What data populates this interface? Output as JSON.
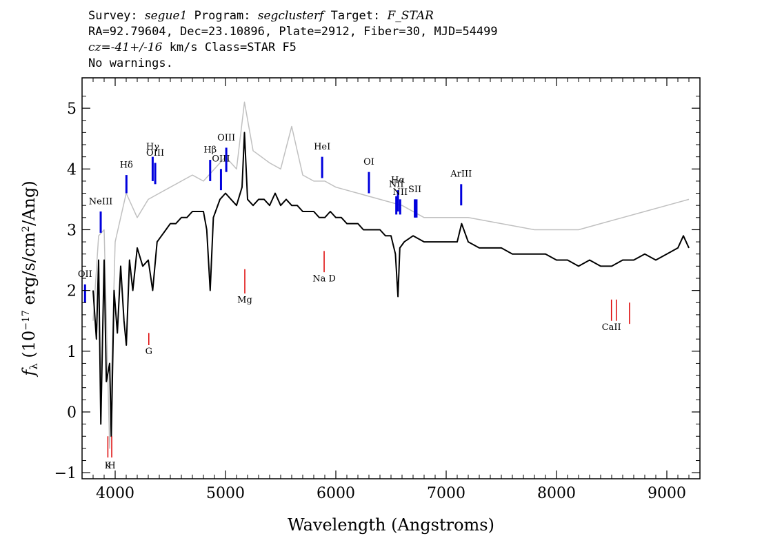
{
  "header": {
    "survey_label": "Survey: ",
    "survey": "segue1",
    "program_label": " Program: ",
    "program": "segclusterf",
    "target_label": " Target: ",
    "target": "F_STAR",
    "line2": "RA=92.79604, Dec=23.10896, Plate=2912, Fiber=30, MJD=54499",
    "cz": "cz=-41+/-16",
    "cz_rest": " km/s Class=STAR F5",
    "line4": "No warnings."
  },
  "chart_data": {
    "type": "line",
    "title": "",
    "xlabel": "Wavelength (Angstroms)",
    "ylabel_parts": [
      "f",
      "λ",
      " (10",
      "−17",
      " erg/s/cm",
      "2",
      "/Ang)"
    ],
    "xlim": [
      3700,
      9300
    ],
    "ylim": [
      -1.1,
      5.5
    ],
    "x_ticks": [
      4000,
      5000,
      6000,
      7000,
      8000,
      9000
    ],
    "x_tick_labels": [
      "4000",
      "5000",
      "6000",
      "7000",
      "8000",
      "9000"
    ],
    "y_ticks": [
      -1,
      0,
      1,
      2,
      3,
      4,
      5
    ],
    "y_tick_labels": [
      "−1",
      "0",
      "1",
      "2",
      "3",
      "4",
      "5"
    ],
    "series": [
      {
        "role": "flux",
        "color": "#000000",
        "points": [
          [
            3800,
            2.0
          ],
          [
            3830,
            1.2
          ],
          [
            3850,
            2.5
          ],
          [
            3870,
            -0.2
          ],
          [
            3900,
            2.5
          ],
          [
            3920,
            0.5
          ],
          [
            3950,
            0.8
          ],
          [
            3965,
            -0.4
          ],
          [
            3990,
            2.0
          ],
          [
            4020,
            1.3
          ],
          [
            4050,
            2.4
          ],
          [
            4080,
            1.5
          ],
          [
            4101,
            1.1
          ],
          [
            4130,
            2.5
          ],
          [
            4160,
            2.0
          ],
          [
            4200,
            2.7
          ],
          [
            4250,
            2.4
          ],
          [
            4300,
            2.5
          ],
          [
            4340,
            2.0
          ],
          [
            4380,
            2.8
          ],
          [
            4420,
            2.9
          ],
          [
            4460,
            3.0
          ],
          [
            4500,
            3.1
          ],
          [
            4550,
            3.1
          ],
          [
            4600,
            3.2
          ],
          [
            4650,
            3.2
          ],
          [
            4700,
            3.3
          ],
          [
            4750,
            3.3
          ],
          [
            4800,
            3.3
          ],
          [
            4830,
            3.0
          ],
          [
            4861,
            2.0
          ],
          [
            4890,
            3.2
          ],
          [
            4950,
            3.5
          ],
          [
            5000,
            3.6
          ],
          [
            5050,
            3.5
          ],
          [
            5100,
            3.4
          ],
          [
            5150,
            3.7
          ],
          [
            5172,
            4.6
          ],
          [
            5200,
            3.5
          ],
          [
            5250,
            3.4
          ],
          [
            5300,
            3.5
          ],
          [
            5350,
            3.5
          ],
          [
            5400,
            3.4
          ],
          [
            5450,
            3.6
          ],
          [
            5500,
            3.4
          ],
          [
            5550,
            3.5
          ],
          [
            5600,
            3.4
          ],
          [
            5650,
            3.4
          ],
          [
            5700,
            3.3
          ],
          [
            5750,
            3.3
          ],
          [
            5800,
            3.3
          ],
          [
            5850,
            3.2
          ],
          [
            5900,
            3.2
          ],
          [
            5950,
            3.3
          ],
          [
            6000,
            3.2
          ],
          [
            6050,
            3.2
          ],
          [
            6100,
            3.1
          ],
          [
            6150,
            3.1
          ],
          [
            6200,
            3.1
          ],
          [
            6250,
            3.0
          ],
          [
            6300,
            3.0
          ],
          [
            6350,
            3.0
          ],
          [
            6400,
            3.0
          ],
          [
            6450,
            2.9
          ],
          [
            6500,
            2.9
          ],
          [
            6540,
            2.6
          ],
          [
            6563,
            1.9
          ],
          [
            6580,
            2.7
          ],
          [
            6620,
            2.8
          ],
          [
            6700,
            2.9
          ],
          [
            6800,
            2.8
          ],
          [
            6900,
            2.8
          ],
          [
            7000,
            2.8
          ],
          [
            7100,
            2.8
          ],
          [
            7140,
            3.1
          ],
          [
            7200,
            2.8
          ],
          [
            7300,
            2.7
          ],
          [
            7400,
            2.7
          ],
          [
            7500,
            2.7
          ],
          [
            7600,
            2.6
          ],
          [
            7700,
            2.6
          ],
          [
            7800,
            2.6
          ],
          [
            7900,
            2.6
          ],
          [
            8000,
            2.5
          ],
          [
            8100,
            2.5
          ],
          [
            8200,
            2.4
          ],
          [
            8300,
            2.5
          ],
          [
            8400,
            2.4
          ],
          [
            8500,
            2.4
          ],
          [
            8600,
            2.5
          ],
          [
            8700,
            2.5
          ],
          [
            8800,
            2.6
          ],
          [
            8900,
            2.5
          ],
          [
            9000,
            2.6
          ],
          [
            9100,
            2.7
          ],
          [
            9150,
            2.9
          ],
          [
            9200,
            2.7
          ]
        ]
      },
      {
        "role": "error",
        "color": "#c0c0c0",
        "points": [
          [
            3800,
            1.5
          ],
          [
            3850,
            2.9
          ],
          [
            3900,
            3.0
          ],
          [
            3950,
            -0.6
          ],
          [
            4000,
            2.8
          ],
          [
            4100,
            3.6
          ],
          [
            4200,
            3.2
          ],
          [
            4300,
            3.5
          ],
          [
            4400,
            3.6
          ],
          [
            4500,
            3.7
          ],
          [
            4600,
            3.8
          ],
          [
            4700,
            3.9
          ],
          [
            4800,
            3.8
          ],
          [
            4900,
            4.0
          ],
          [
            5000,
            4.2
          ],
          [
            5100,
            4.0
          ],
          [
            5172,
            5.1
          ],
          [
            5250,
            4.3
          ],
          [
            5400,
            4.1
          ],
          [
            5500,
            4.0
          ],
          [
            5600,
            4.7
          ],
          [
            5700,
            3.9
          ],
          [
            5800,
            3.8
          ],
          [
            5900,
            3.8
          ],
          [
            6000,
            3.7
          ],
          [
            6200,
            3.6
          ],
          [
            6400,
            3.5
          ],
          [
            6600,
            3.4
          ],
          [
            6800,
            3.2
          ],
          [
            7000,
            3.2
          ],
          [
            7200,
            3.2
          ],
          [
            7500,
            3.1
          ],
          [
            7800,
            3.0
          ],
          [
            8000,
            3.0
          ],
          [
            8200,
            3.0
          ],
          [
            8400,
            3.1
          ],
          [
            8600,
            3.2
          ],
          [
            8800,
            3.3
          ],
          [
            9000,
            3.4
          ],
          [
            9200,
            3.5
          ]
        ]
      }
    ],
    "emission_lines": [
      {
        "label": "NeIII",
        "x": 3869,
        "y0": 2.95,
        "y1": 3.3,
        "color": "#0000dd",
        "label_y": 3.42
      },
      {
        "label": "OII",
        "x": 3727,
        "y0": 1.8,
        "y1": 2.1,
        "color": "#0000dd",
        "label_y": 2.22
      },
      {
        "label": "Hδ",
        "x": 4102,
        "y0": 3.6,
        "y1": 3.9,
        "color": "#0000dd",
        "label_y": 4.02
      },
      {
        "label": "Hγ",
        "x": 4340,
        "y0": 3.8,
        "y1": 4.2,
        "color": "#0000dd",
        "label_y": 4.32
      },
      {
        "label": "OIII",
        "x": 4363,
        "y0": 3.75,
        "y1": 4.1,
        "color": "#0000dd",
        "label_y": 4.22
      },
      {
        "label": "Hβ",
        "x": 4861,
        "y0": 3.8,
        "y1": 4.15,
        "color": "#0000dd",
        "label_y": 4.27
      },
      {
        "label": "OIII",
        "x": 4959,
        "y0": 3.65,
        "y1": 4.0,
        "color": "#0000dd",
        "label_y": 4.12
      },
      {
        "label": "OIII",
        "x": 5007,
        "y0": 3.95,
        "y1": 4.35,
        "color": "#0000dd",
        "label_y": 4.47
      },
      {
        "label": "HeI",
        "x": 5876,
        "y0": 3.85,
        "y1": 4.2,
        "color": "#0000dd",
        "label_y": 4.32
      },
      {
        "label": "OI",
        "x": 6300,
        "y0": 3.6,
        "y1": 3.95,
        "color": "#0000dd",
        "label_y": 4.07
      },
      {
        "label": "NII",
        "x": 6548,
        "y0": 3.25,
        "y1": 3.55,
        "color": "#0000dd",
        "label_y": 3.7
      },
      {
        "label": "Hα",
        "x": 6563,
        "y0": 3.3,
        "y1": 3.65,
        "color": "#0000dd",
        "label_y": 3.77
      },
      {
        "label": "NII",
        "x": 6583,
        "y0": 3.25,
        "y1": 3.5,
        "color": "#0000dd",
        "label_y": 3.57
      },
      {
        "label": "SII",
        "x": 6716,
        "y0": 3.2,
        "y1": 3.5,
        "color": "#0000dd",
        "label_y": 3.62
      },
      {
        "label": "",
        "x": 6731,
        "y0": 3.2,
        "y1": 3.5,
        "color": "#0000dd",
        "label_y": 3.62
      },
      {
        "label": "ArIII",
        "x": 7136,
        "y0": 3.4,
        "y1": 3.75,
        "color": "#0000dd",
        "label_y": 3.87
      }
    ],
    "absorption_lines": [
      {
        "label": "K",
        "x": 3934,
        "y0": -0.75,
        "y1": -0.4,
        "color": "#dd0000",
        "label_y": -0.93
      },
      {
        "label": "H",
        "x": 3969,
        "y0": -0.75,
        "y1": -0.4,
        "color": "#dd0000",
        "label_y": -0.93
      },
      {
        "label": "G",
        "x": 4305,
        "y0": 1.1,
        "y1": 1.3,
        "color": "#dd0000",
        "label_y": 0.95
      },
      {
        "label": "Mg",
        "x": 5175,
        "y0": 1.95,
        "y1": 2.35,
        "color": "#dd0000",
        "label_y": 1.8
      },
      {
        "label": "Na D",
        "x": 5894,
        "y0": 2.3,
        "y1": 2.65,
        "color": "#dd0000",
        "label_y": 2.15
      },
      {
        "label": "CaII",
        "x": 8498,
        "y0": 1.5,
        "y1": 1.85,
        "color": "#dd0000",
        "label_y": 1.35
      },
      {
        "label": "",
        "x": 8542,
        "y0": 1.5,
        "y1": 1.85,
        "color": "#dd0000",
        "label_y": 1.35
      },
      {
        "label": "",
        "x": 8662,
        "y0": 1.45,
        "y1": 1.8,
        "color": "#dd0000",
        "label_y": 1.35
      }
    ]
  }
}
